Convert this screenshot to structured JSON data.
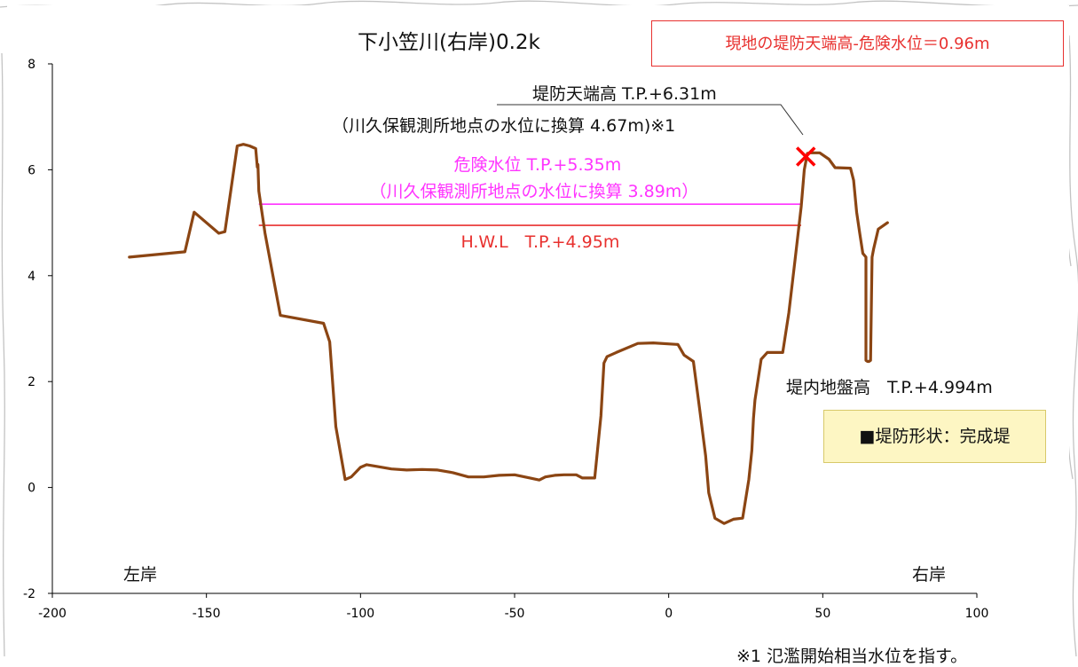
{
  "chart_data": {
    "type": "line",
    "title": "下小笠川(右岸)0.2k",
    "xlabel": "",
    "ylabel": "",
    "xlim": [
      -200,
      100
    ],
    "ylim": [
      -2,
      8
    ],
    "x_ticks": [
      -200,
      -150,
      -100,
      -50,
      0,
      50,
      100
    ],
    "y_ticks": [
      -2,
      0,
      2,
      4,
      6,
      8
    ],
    "grid": false,
    "series": [
      {
        "color": "#8b4513",
        "x": [
          -175,
          -157,
          -154,
          -146,
          -144,
          -140,
          -138,
          -136,
          -134,
          -133.5,
          -133.3,
          -133,
          -131,
          -126,
          -112,
          -110,
          -108,
          -105,
          -103,
          -100,
          -98,
          -95,
          -90,
          -85,
          -80,
          -75,
          -70,
          -65,
          -60,
          -55,
          -50,
          -45,
          -42,
          -40,
          -37,
          -34,
          -30,
          -28,
          -26,
          -24,
          -22,
          -21,
          -20,
          -17,
          -10,
          -5,
          3,
          5,
          8,
          10,
          12,
          13,
          15,
          18,
          21,
          24,
          26,
          27,
          27.5,
          28,
          30,
          32,
          37,
          39,
          41,
          43,
          44,
          45,
          46,
          49,
          52,
          54,
          59,
          60,
          61,
          62,
          63,
          64,
          64,
          64.5,
          65,
          65.5,
          66,
          66.5,
          68,
          71
        ],
        "y": [
          4.35,
          4.45,
          5.2,
          4.8,
          4.83,
          6.45,
          6.48,
          6.45,
          6.4,
          6.05,
          6.1,
          5.6,
          4.8,
          3.25,
          3.1,
          2.75,
          1.15,
          0.15,
          0.2,
          0.38,
          0.43,
          0.4,
          0.35,
          0.33,
          0.34,
          0.33,
          0.28,
          0.2,
          0.2,
          0.23,
          0.24,
          0.18,
          0.14,
          0.2,
          0.23,
          0.24,
          0.24,
          0.18,
          0.18,
          0.18,
          1.35,
          2.35,
          2.47,
          2.55,
          2.72,
          2.73,
          2.7,
          2.5,
          2.38,
          1.5,
          0.6,
          -0.1,
          -0.58,
          -0.68,
          -0.6,
          -0.58,
          0.15,
          0.7,
          1.3,
          1.65,
          2.42,
          2.55,
          2.55,
          3.3,
          4.3,
          5.3,
          6.0,
          6.31,
          6.32,
          6.32,
          6.2,
          6.04,
          6.03,
          5.8,
          5.2,
          4.8,
          4.42,
          4.35,
          2.4,
          2.38,
          2.38,
          2.4,
          4.35,
          4.5,
          4.88,
          5.0
        ]
      }
    ],
    "reference_lines": [
      {
        "label": "危険水位 T.P.+5.35m",
        "sublabel": "（川久保観測所地点の水位に換算 3.89m）",
        "y": 5.35,
        "x_from": -133,
        "x_to": 43,
        "color": "#ff33ff"
      },
      {
        "label": "H.W.L　T.P.+4.95m",
        "y": 4.95,
        "x_from": -133,
        "x_to": 43,
        "color": "#e8312f"
      }
    ],
    "annotations": {
      "bank_top_line1": "堤防天端高 T.P.+6.31m",
      "bank_top_line2": "（川久保観測所地点の水位に換算 4.67m)※1",
      "bank_top_marker": {
        "x": 44.5,
        "y": 6.25,
        "color": "#ff0000"
      },
      "ground_height": "堤内地盤高　T.P.+4.994m",
      "left_bank": "左岸",
      "right_bank": "右岸"
    },
    "headline": "現地の堤防天端高-危険水位＝0.96m",
    "shape_note": "■堤防形状：完成堤",
    "footnote": "※1 氾濫開始相当水位を指す。"
  }
}
